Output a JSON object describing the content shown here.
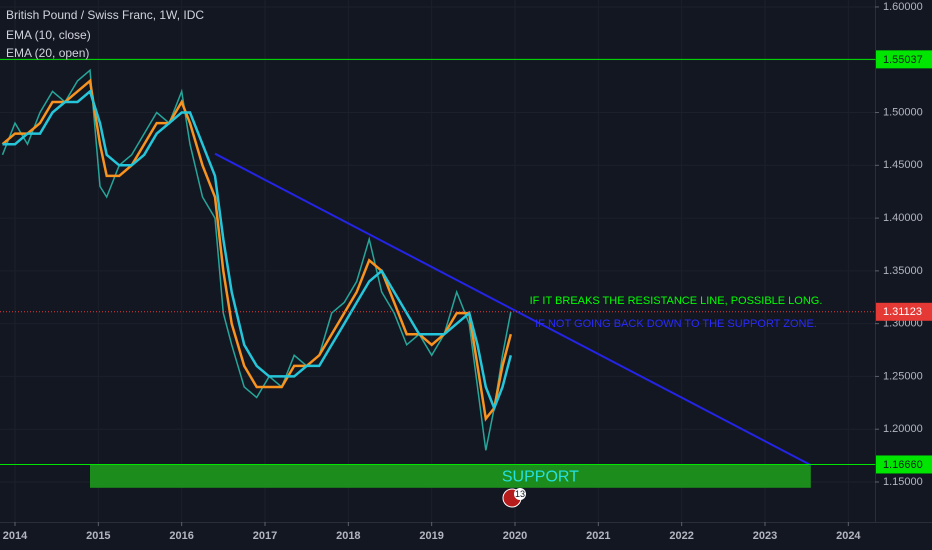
{
  "chart_data": {
    "type": "line",
    "title": "British Pound / Swiss Franc, 1W, IDC",
    "x": [
      2013.85,
      2014.0,
      2014.15,
      2014.3,
      2014.45,
      2014.6,
      2014.75,
      2014.9,
      2015.02,
      2015.1,
      2015.25,
      2015.4,
      2015.55,
      2015.7,
      2015.85,
      2016.0,
      2016.1,
      2016.25,
      2016.4,
      2016.5,
      2016.6,
      2016.75,
      2016.9,
      2017.05,
      2017.2,
      2017.35,
      2017.5,
      2017.65,
      2017.8,
      2017.95,
      2018.1,
      2018.25,
      2018.4,
      2018.55,
      2018.7,
      2018.85,
      2019.0,
      2019.15,
      2019.3,
      2019.45,
      2019.55,
      2019.65,
      2019.75,
      2019.85,
      2019.95
    ],
    "values": [
      1.46,
      1.49,
      1.47,
      1.5,
      1.52,
      1.51,
      1.53,
      1.54,
      1.43,
      1.42,
      1.45,
      1.46,
      1.48,
      1.5,
      1.49,
      1.52,
      1.47,
      1.42,
      1.4,
      1.31,
      1.28,
      1.24,
      1.23,
      1.25,
      1.24,
      1.27,
      1.26,
      1.27,
      1.31,
      1.32,
      1.34,
      1.38,
      1.33,
      1.31,
      1.28,
      1.29,
      1.27,
      1.29,
      1.33,
      1.3,
      1.24,
      1.18,
      1.22,
      1.27,
      1.31123
    ],
    "color": "#26a69a",
    "series": [
      {
        "name": "EMA (10, close)",
        "color": "#f7931e",
        "values": [
          1.47,
          1.48,
          1.48,
          1.49,
          1.51,
          1.51,
          1.52,
          1.53,
          1.47,
          1.44,
          1.44,
          1.45,
          1.47,
          1.49,
          1.49,
          1.51,
          1.49,
          1.45,
          1.42,
          1.35,
          1.3,
          1.26,
          1.24,
          1.24,
          1.24,
          1.26,
          1.26,
          1.27,
          1.29,
          1.31,
          1.33,
          1.36,
          1.35,
          1.32,
          1.29,
          1.29,
          1.28,
          1.29,
          1.31,
          1.31,
          1.26,
          1.21,
          1.22,
          1.26,
          1.29
        ]
      },
      {
        "name": "EMA (20, open)",
        "color": "#26c6da",
        "values": [
          1.47,
          1.47,
          1.48,
          1.48,
          1.5,
          1.51,
          1.51,
          1.52,
          1.49,
          1.46,
          1.45,
          1.45,
          1.46,
          1.48,
          1.49,
          1.5,
          1.5,
          1.47,
          1.44,
          1.38,
          1.33,
          1.28,
          1.26,
          1.25,
          1.25,
          1.25,
          1.26,
          1.26,
          1.28,
          1.3,
          1.32,
          1.34,
          1.35,
          1.33,
          1.31,
          1.29,
          1.29,
          1.29,
          1.3,
          1.31,
          1.28,
          1.24,
          1.22,
          1.24,
          1.27
        ]
      }
    ],
    "xlim": [
      2013.82,
      2024.32
    ],
    "xticks": [
      2014,
      2015,
      2016,
      2017,
      2018,
      2019,
      2020,
      2021,
      2022,
      2023,
      2024
    ],
    "ylim": [
      1.1121,
      1.6066
    ],
    "yticks": [
      {
        "value": 1.15,
        "label": "1.15000"
      },
      {
        "value": 1.2,
        "label": "1.20000"
      },
      {
        "value": 1.25,
        "label": "1.25000"
      },
      {
        "value": 1.3,
        "label": "1.30000"
      },
      {
        "value": 1.35,
        "label": "1.35000"
      },
      {
        "value": 1.4,
        "label": "1.40000"
      },
      {
        "value": 1.45,
        "label": "1.45000"
      },
      {
        "value": 1.5,
        "label": "1.50000"
      },
      {
        "value": 1.55,
        "label": "1.55000"
      },
      {
        "value": 1.6,
        "label": "1.60000"
      }
    ],
    "levels": [
      {
        "value": 1.55037,
        "color": "#00e600"
      },
      {
        "value": 1.1666,
        "label": "1.16660",
        "color": "#00e600"
      },
      {
        "value": 1.31123,
        "color": "#e53935"
      }
    ],
    "trendline": {
      "x": [
        2016.4,
        2023.55
      ],
      "y": [
        1.461,
        1.166
      ],
      "color": "#2424e6"
    },
    "support_zone": {
      "x": [
        2014.9,
        2023.55
      ],
      "y": [
        1.1666,
        1.1445
      ],
      "color": "#1c8c1c",
      "label": "SUPPORT"
    },
    "annotations": [
      "IF IT BREAKS THE RESISTANCE LINE, POSSIBLE LONG.",
      "IF NOT GOING BACK DOWN TO THE SUPPORT ZONE."
    ],
    "event_badge": "13"
  }
}
